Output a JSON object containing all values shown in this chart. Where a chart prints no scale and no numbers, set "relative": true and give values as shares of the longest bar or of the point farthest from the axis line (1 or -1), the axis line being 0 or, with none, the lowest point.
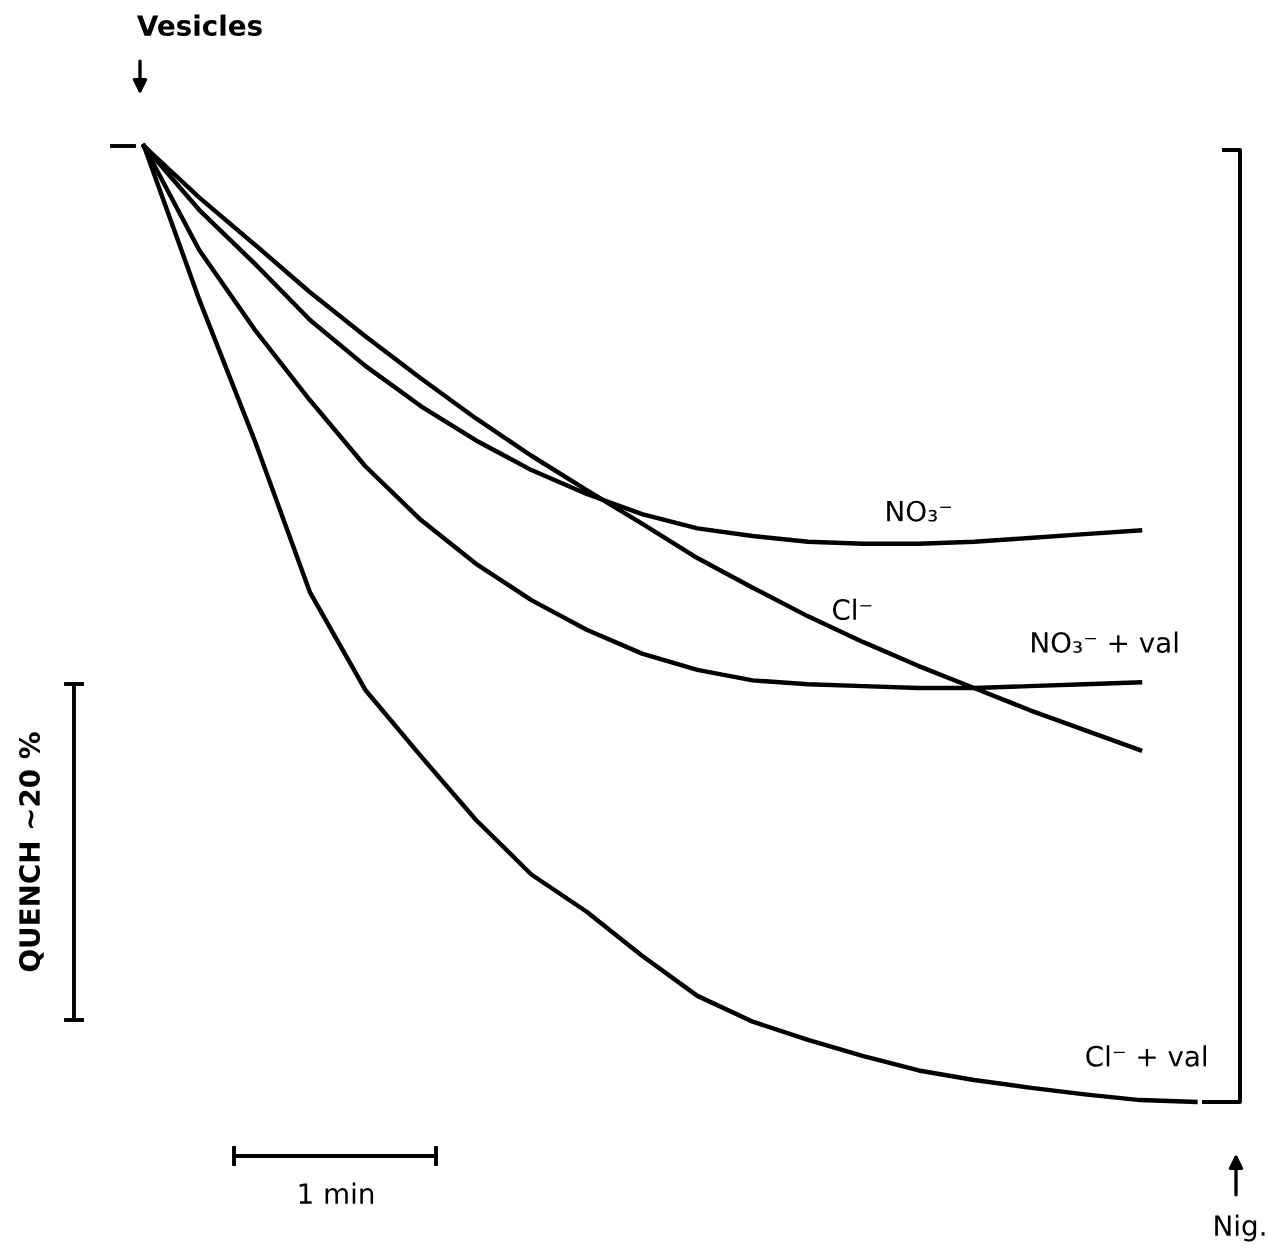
{
  "chart_data": {
    "type": "line",
    "relative": true,
    "categories": [
      null,
      null,
      null,
      null,
      null,
      null,
      null,
      null,
      null,
      null,
      null,
      null,
      null,
      null,
      null,
      null,
      null,
      null,
      null,
      null
    ],
    "series": [
      {
        "name": "NO₃⁻",
        "color": "#000000",
        "values": [
          1,
          0.933,
          0.877,
          0.818,
          0.77,
          0.728,
          0.692,
          0.661,
          0.636,
          0.615,
          0.6,
          0.592,
          0.586,
          0.584,
          0.584,
          0.586,
          0.59,
          0.594,
          0.598,
          null
        ]
      },
      {
        "name": "Cl⁻",
        "color": "#000000",
        "values": [
          1,
          0.946,
          0.897,
          0.847,
          0.801,
          0.757,
          0.715,
          0.676,
          0.64,
          0.605,
          0.569,
          0.538,
          0.508,
          0.481,
          0.456,
          0.433,
          0.41,
          0.389,
          0.368,
          null
        ]
      },
      {
        "name": "NO₃⁻ + val",
        "color": "#000000",
        "values": [
          1,
          0.891,
          0.808,
          0.734,
          0.665,
          0.609,
          0.563,
          0.525,
          0.494,
          0.469,
          0.452,
          0.441,
          0.437,
          0.435,
          0.433,
          0.433,
          0.435,
          0.437,
          0.439,
          null
        ]
      },
      {
        "name": "Cl⁻ + val",
        "color": "#000000",
        "values": [
          1,
          0.839,
          0.692,
          0.533,
          0.431,
          0.362,
          0.295,
          0.238,
          0.199,
          0.153,
          0.111,
          0.084,
          0.065,
          0.048,
          0.033,
          0.023,
          0.015,
          0.008,
          0.002,
          0
        ]
      }
    ],
    "annotations": [
      "Vesicles",
      "QUENCH ~20 %",
      "1 min",
      "Nig."
    ]
  }
}
